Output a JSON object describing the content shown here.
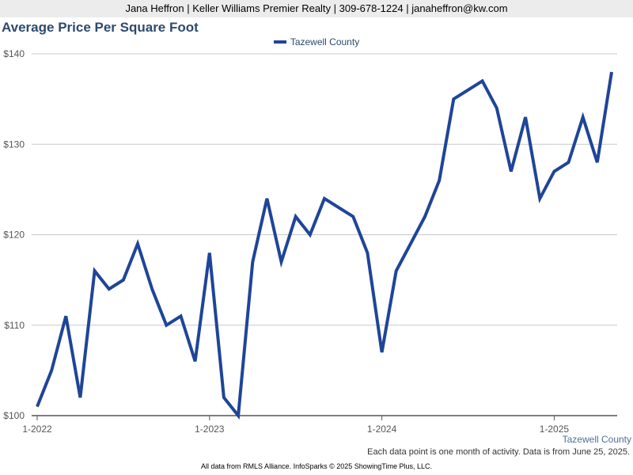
{
  "header": {
    "text": "Jana Heffron | Keller Williams Premier Realty | 309-678-1224 | janaheffron@kw.com"
  },
  "chart_data": {
    "type": "line",
    "title": "Average Price Per Square Foot",
    "xlabel": "",
    "ylabel": "",
    "ylim": [
      100,
      140
    ],
    "y_ticks": [
      "$100",
      "$110",
      "$120",
      "$130",
      "$140"
    ],
    "x_ticks": [
      "1-2022",
      "1-2023",
      "1-2024",
      "1-2025"
    ],
    "x_tick_months": [
      "2022-01",
      "2023-01",
      "2024-01",
      "2025-01"
    ],
    "grid": true,
    "legend_position": "top",
    "x": [
      "2022-01",
      "2022-02",
      "2022-03",
      "2022-04",
      "2022-05",
      "2022-06",
      "2022-07",
      "2022-08",
      "2022-09",
      "2022-10",
      "2022-11",
      "2022-12",
      "2023-01",
      "2023-02",
      "2023-03",
      "2023-04",
      "2023-05",
      "2023-06",
      "2023-07",
      "2023-08",
      "2023-09",
      "2023-10",
      "2023-11",
      "2023-12",
      "2024-01",
      "2024-02",
      "2024-03",
      "2024-04",
      "2024-05",
      "2024-06",
      "2024-07",
      "2024-08",
      "2024-09",
      "2024-10",
      "2024-11",
      "2024-12",
      "2025-01",
      "2025-02",
      "2025-03",
      "2025-04",
      "2025-05"
    ],
    "series": [
      {
        "name": "Tazewell County",
        "color": "#1f4598",
        "values": [
          101,
          105,
          111,
          102,
          116,
          114,
          115,
          119,
          114,
          110,
          111,
          106,
          118,
          102,
          100,
          117,
          124,
          117,
          122,
          120,
          124,
          123,
          122,
          118,
          107,
          116,
          119,
          122,
          126,
          135,
          136,
          137,
          134,
          127,
          133,
          124,
          127,
          128,
          133,
          128,
          138
        ]
      }
    ]
  },
  "corner_label": "Tazewell County",
  "note": "Each data point is one month of activity. Data is from June 25, 2025.",
  "footer": "All data from RMLS Alliance. InfoSparks © 2025 ShowingTime Plus, LLC."
}
